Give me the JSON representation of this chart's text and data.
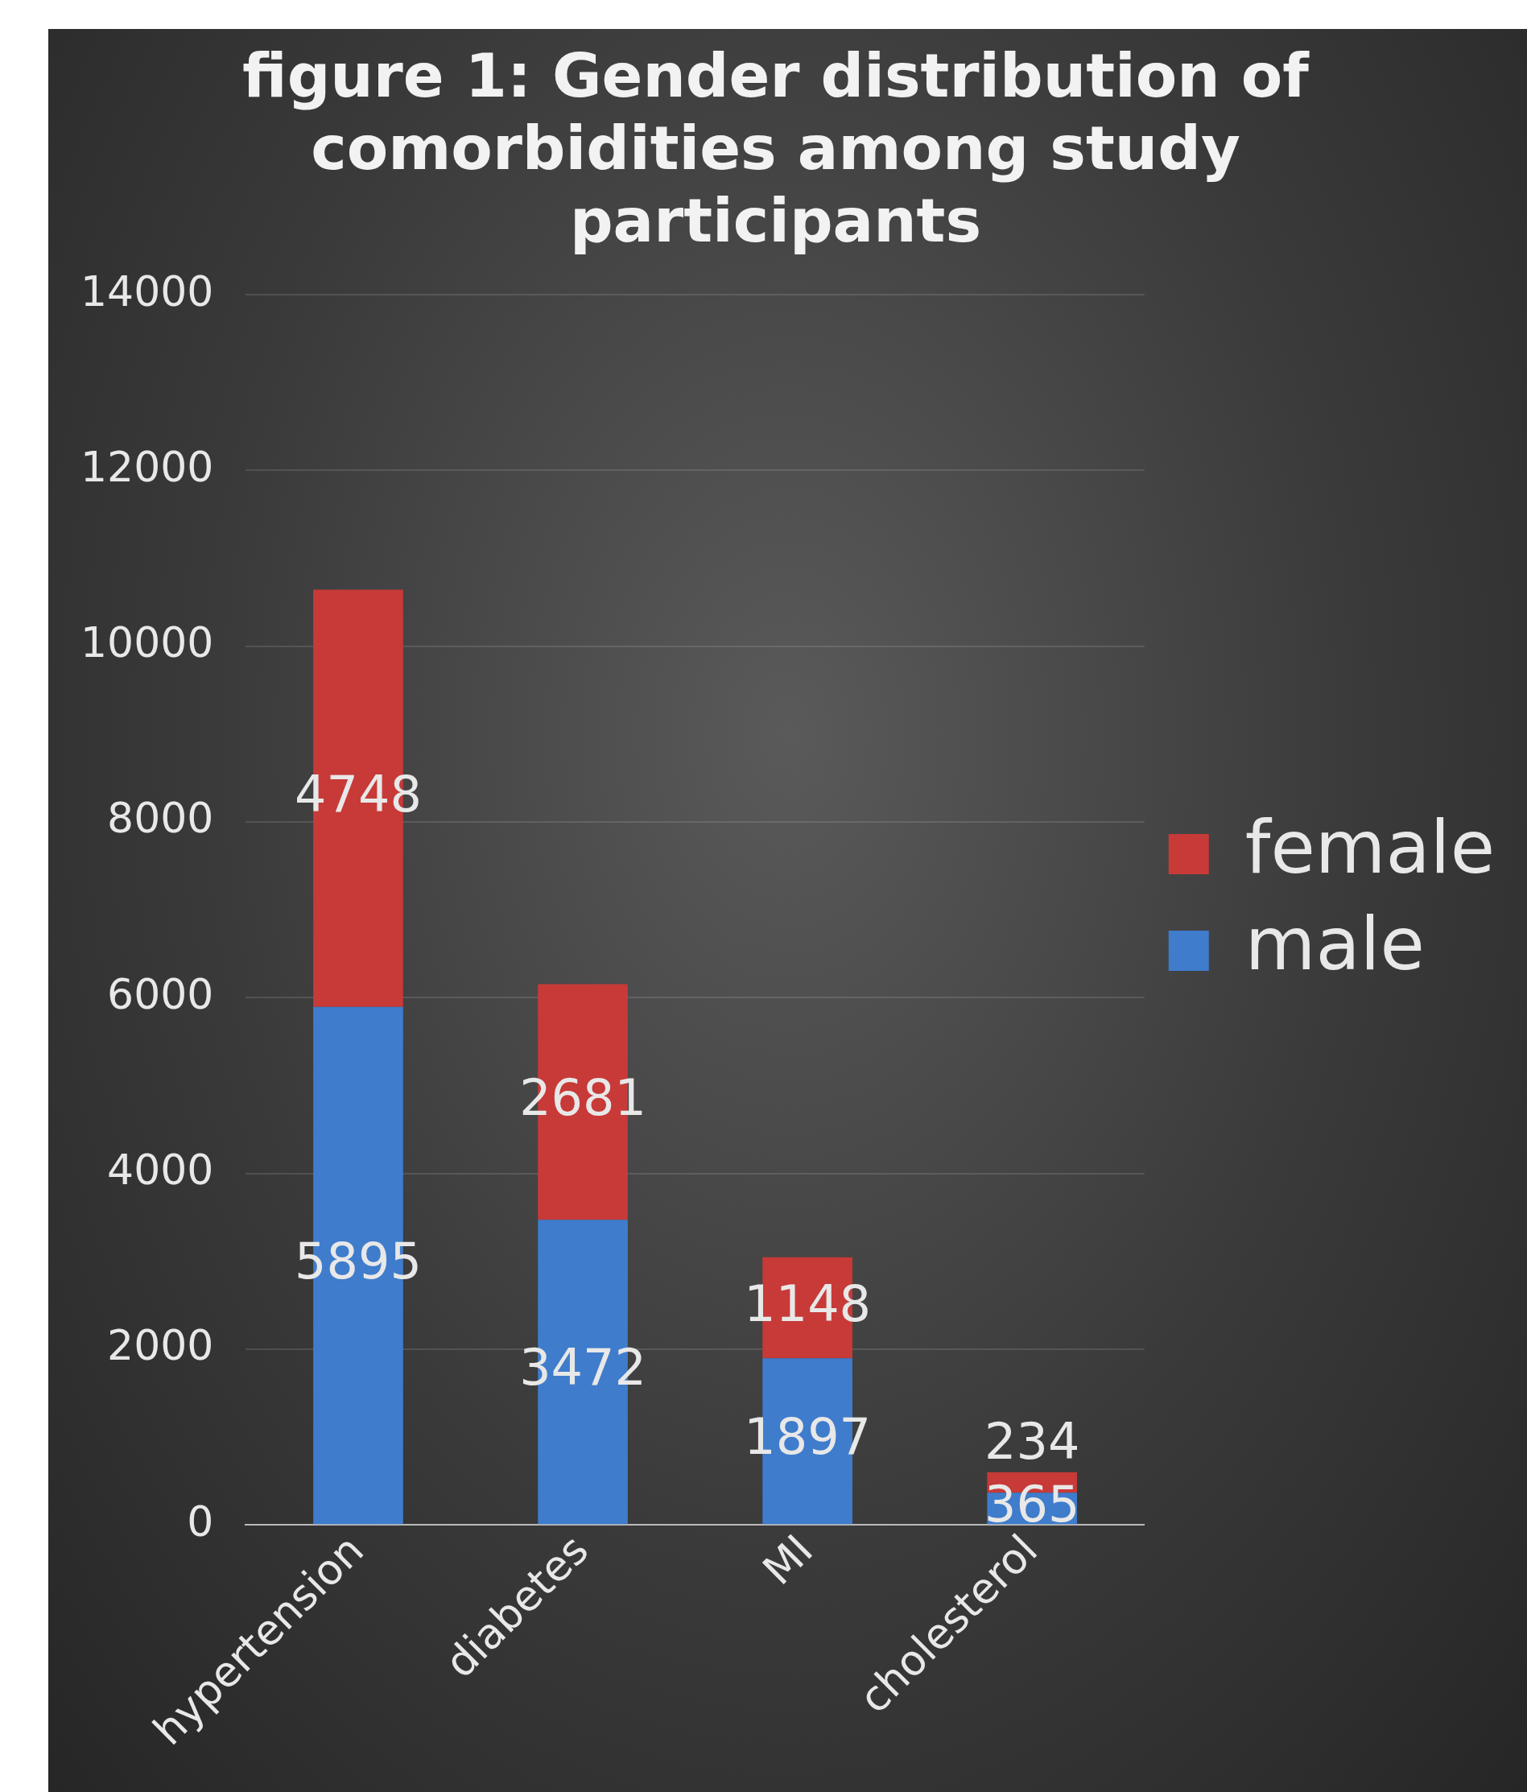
{
  "chart_data": {
    "type": "bar",
    "title": "figure 1: Gender distribution of comorbidities among study participants",
    "categories": [
      "hypertension",
      "diabetes",
      "MI",
      "cholesterol"
    ],
    "series": [
      {
        "name": "male",
        "color": "#3f7ccc",
        "values": [
          5895,
          3472,
          1897,
          365
        ]
      },
      {
        "name": "female",
        "color": "#c73a38",
        "values": [
          4748,
          2681,
          1148,
          234
        ]
      }
    ],
    "stacked": true,
    "ylim": [
      0,
      14000
    ],
    "yticks": [
      0,
      2000,
      4000,
      6000,
      8000,
      10000,
      12000,
      14000
    ],
    "grid": "y",
    "legend": "right",
    "data_labels": true
  }
}
